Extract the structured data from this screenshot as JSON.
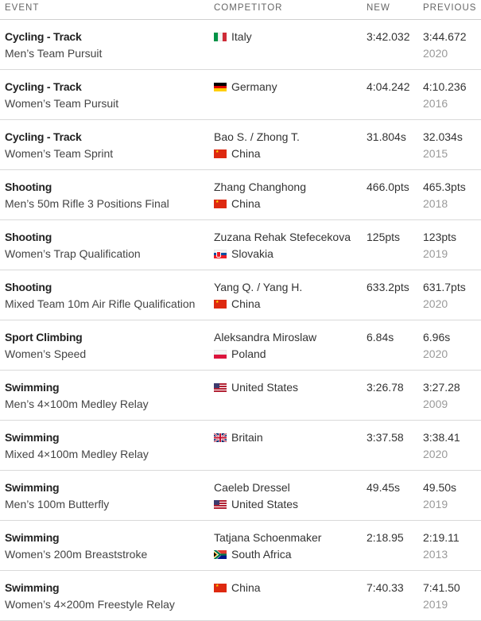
{
  "header": {
    "event": "EVENT",
    "competitor": "COMPETITOR",
    "new": "NEW",
    "previous": "PREVIOUS"
  },
  "rows": [
    {
      "sport": "Cycling - Track",
      "event": "Men’s Team Pursuit",
      "athlete": "",
      "country": "Italy",
      "flag": "italy-flag-icon",
      "new": "3:42.032",
      "prev": "3:44.672",
      "prev_year": "2020"
    },
    {
      "sport": "Cycling - Track",
      "event": "Women’s Team Pursuit",
      "athlete": "",
      "country": "Germany",
      "flag": "germany-flag-icon",
      "new": "4:04.242",
      "prev": "4:10.236",
      "prev_year": "2016"
    },
    {
      "sport": "Cycling - Track",
      "event": "Women’s Team Sprint",
      "athlete": "Bao S. / Zhong T.",
      "country": "China",
      "flag": "china-flag-icon",
      "new": "31.804s",
      "prev": "32.034s",
      "prev_year": "2015"
    },
    {
      "sport": "Shooting",
      "event": "Men’s 50m Rifle 3 Positions Final",
      "athlete": "Zhang Changhong",
      "country": "China",
      "flag": "china-flag-icon",
      "new": "466.0pts",
      "prev": "465.3pts",
      "prev_year": "2018"
    },
    {
      "sport": "Shooting",
      "event": "Women’s Trap Qualification",
      "athlete": "Zuzana Rehak Stefecekova",
      "country": "Slovakia",
      "flag": "slovakia-flag-icon",
      "new": "125pts",
      "prev": "123pts",
      "prev_year": "2019"
    },
    {
      "sport": "Shooting",
      "event": "Mixed Team 10m Air Rifle Qualification",
      "athlete": "Yang Q. / Yang H.",
      "country": "China",
      "flag": "china-flag-icon",
      "new": "633.2pts",
      "prev": "631.7pts",
      "prev_year": "2020"
    },
    {
      "sport": "Sport Climbing",
      "event": "Women’s Speed",
      "athlete": "Aleksandra Miroslaw",
      "country": "Poland",
      "flag": "poland-flag-icon",
      "new": "6.84s",
      "prev": "6.96s",
      "prev_year": "2020"
    },
    {
      "sport": "Swimming",
      "event": "Men’s 4×100m Medley Relay",
      "athlete": "",
      "country": "United States",
      "flag": "united-states-flag-icon",
      "new": "3:26.78",
      "prev": "3:27.28",
      "prev_year": "2009"
    },
    {
      "sport": "Swimming",
      "event": "Mixed 4×100m Medley Relay",
      "athlete": "",
      "country": "Britain",
      "flag": "britain-flag-icon",
      "new": "3:37.58",
      "prev": "3:38.41",
      "prev_year": "2020"
    },
    {
      "sport": "Swimming",
      "event": "Men’s 100m Butterfly",
      "athlete": "Caeleb Dressel",
      "country": "United States",
      "flag": "united-states-flag-icon",
      "new": "49.45s",
      "prev": "49.50s",
      "prev_year": "2019"
    },
    {
      "sport": "Swimming",
      "event": "Women’s 200m Breaststroke",
      "athlete": "Tatjana Schoenmaker",
      "country": "South Africa",
      "flag": "south-africa-flag-icon",
      "new": "2:18.95",
      "prev": "2:19.11",
      "prev_year": "2013"
    },
    {
      "sport": "Swimming",
      "event": "Women’s 4×200m Freestyle Relay",
      "athlete": "",
      "country": "China",
      "flag": "china-flag-icon",
      "new": "7:40.33",
      "prev": "7:41.50",
      "prev_year": "2019"
    }
  ]
}
